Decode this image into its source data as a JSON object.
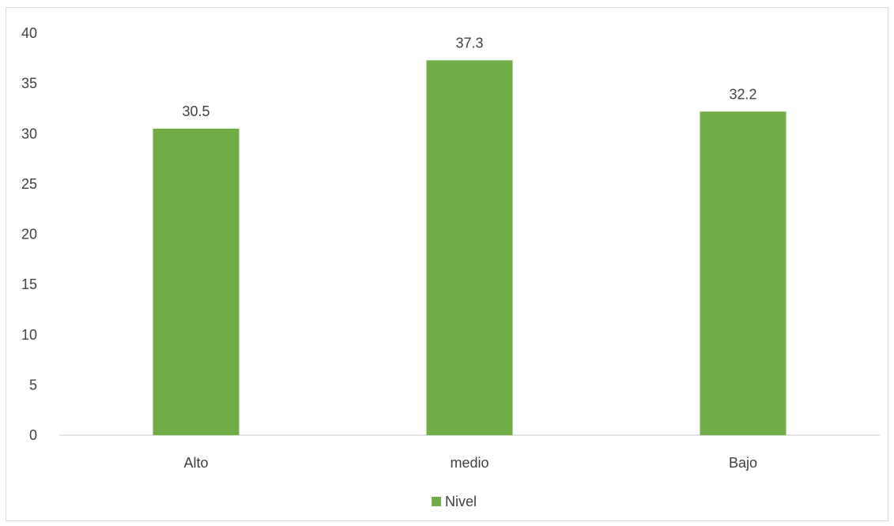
{
  "chart_data": {
    "type": "bar",
    "categories": [
      "Alto",
      "medio",
      "Bajo"
    ],
    "series": [
      {
        "name": "Nivel",
        "values": [
          30.5,
          37.3,
          32.2
        ]
      }
    ],
    "data_labels": [
      "30.5",
      "37.3",
      "32.2"
    ],
    "ylim": [
      0,
      40
    ],
    "yticks": [
      0,
      5,
      10,
      15,
      20,
      25,
      30,
      35,
      40
    ],
    "grid": false,
    "legend_position": "bottom",
    "bar_color": "#70ad47"
  }
}
